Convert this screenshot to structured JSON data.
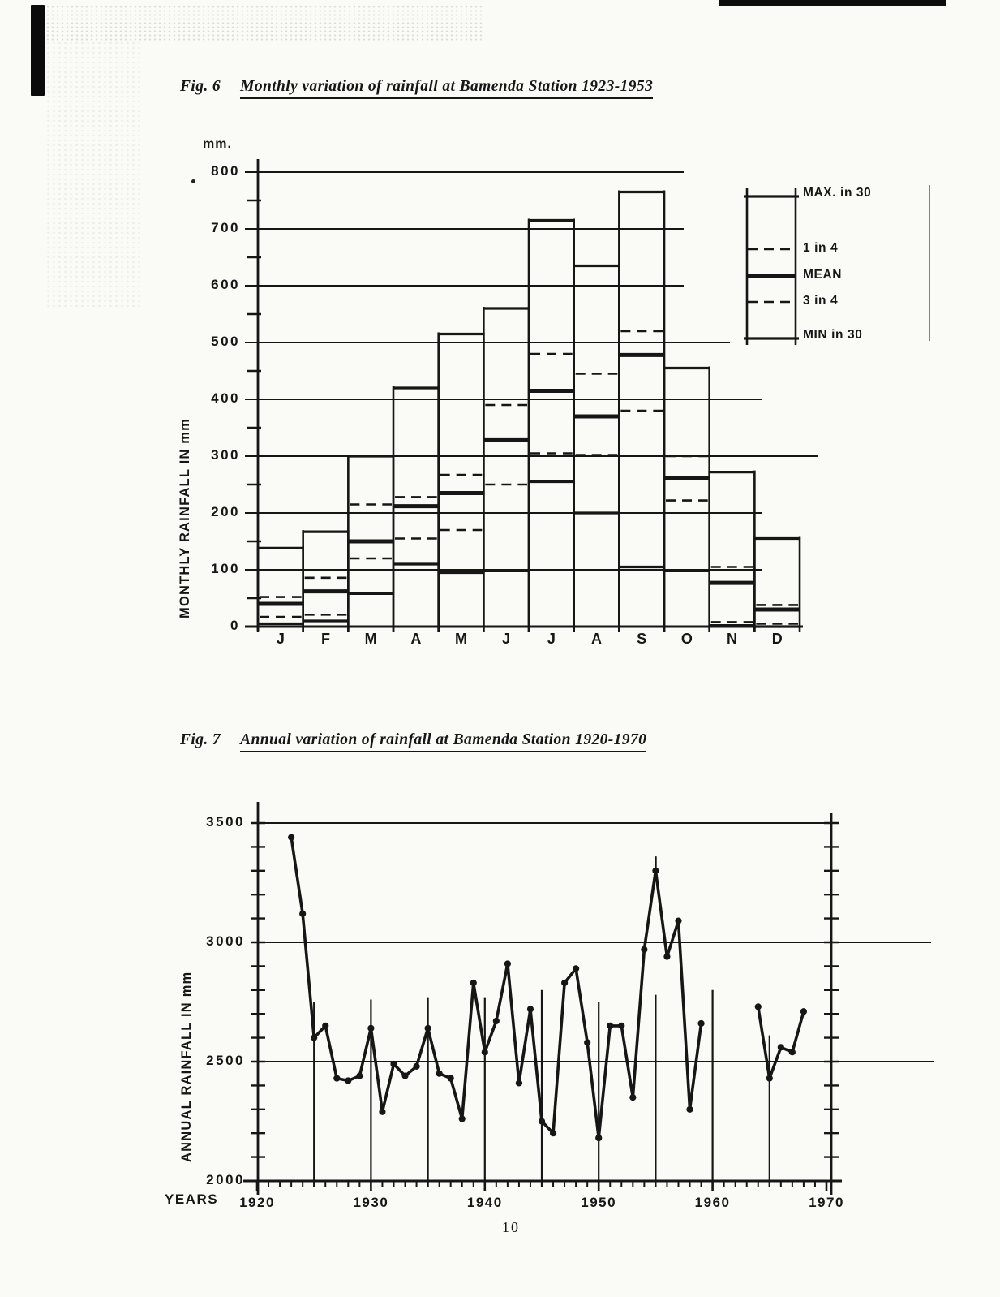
{
  "page": {
    "number": "10"
  },
  "fig6": {
    "label": "Fig. 6",
    "title": "Monthly variation of rainfall at Bamenda Station 1923-1953",
    "unit": "mm.",
    "y_axis_label": "MONTHLY RAINFALL IN mm",
    "y_ticks": [
      800,
      700,
      600,
      500,
      400,
      300,
      200,
      100,
      0
    ],
    "months": [
      "J",
      "F",
      "M",
      "A",
      "M",
      "J",
      "J",
      "A",
      "S",
      "O",
      "N",
      "D"
    ],
    "legend": [
      "MAX. in 30",
      "1 in  4",
      "MEAN",
      "3 in  4",
      "MIN in  30"
    ]
  },
  "fig7": {
    "label": "Fig. 7",
    "title": "Annual variation of rainfall at Bamenda Station 1920-1970",
    "y_axis_label": "ANNUAL RAINFALL IN mm",
    "x_axis_label": "YEARS",
    "y_ticks": [
      3500,
      3000,
      2500,
      2000
    ],
    "x_ticks": [
      1920,
      1930,
      1940,
      1950,
      1960,
      1970
    ]
  },
  "chart_data": [
    {
      "type": "bar",
      "subtype": "range-bars",
      "title": "Monthly variation of rainfall at Bamenda Station 1923-1953",
      "xlabel": "month",
      "ylabel": "MONTHLY RAINFALL IN mm",
      "ylim": [
        0,
        800
      ],
      "grid": true,
      "legend_position": "right",
      "categories": [
        "J",
        "F",
        "M",
        "A",
        "M",
        "J",
        "J",
        "A",
        "S",
        "O",
        "N",
        "D"
      ],
      "series": [
        {
          "name": "MAX. in 30",
          "style": "solid",
          "values": [
            138,
            167,
            300,
            420,
            515,
            560,
            715,
            635,
            765,
            455,
            272,
            155
          ]
        },
        {
          "name": "1 in 4",
          "style": "dashed",
          "values": [
            52,
            86,
            215,
            228,
            267,
            390,
            480,
            445,
            520,
            300,
            105,
            38
          ]
        },
        {
          "name": "MEAN",
          "style": "thick",
          "values": [
            40,
            62,
            150,
            212,
            235,
            328,
            415,
            370,
            478,
            262,
            77,
            30
          ]
        },
        {
          "name": "3 in 4",
          "style": "dashed",
          "values": [
            17,
            21,
            120,
            155,
            170,
            250,
            305,
            302,
            380,
            222,
            8,
            5
          ]
        },
        {
          "name": "MIN in 30",
          "style": "solid",
          "values": [
            5,
            10,
            58,
            110,
            95,
            98,
            255,
            200,
            105,
            98,
            2,
            0
          ]
        }
      ]
    },
    {
      "type": "line",
      "title": "Annual variation of rainfall at Bamenda Station 1920-1970",
      "xlabel": "YEARS",
      "ylabel": "ANNUAL RAINFALL IN mm",
      "xlim": [
        1920,
        1970.5
      ],
      "ylim": [
        2000,
        3500
      ],
      "markers": true,
      "segments": [
        {
          "years": [
            1923,
            1924,
            1925,
            1926,
            1927,
            1928,
            1929,
            1930,
            1931,
            1932,
            1933,
            1934,
            1935,
            1936,
            1937,
            1938,
            1939,
            1940,
            1941,
            1942,
            1943,
            1944,
            1945,
            1946,
            1947,
            1948,
            1949,
            1950,
            1951,
            1952,
            1953,
            1954,
            1955,
            1956,
            1957,
            1958,
            1959
          ],
          "values": [
            3440,
            3120,
            2600,
            2650,
            2430,
            2420,
            2440,
            2640,
            2290,
            2490,
            2440,
            2480,
            2640,
            2450,
            2430,
            2260,
            2830,
            2540,
            2670,
            2910,
            2410,
            2720,
            2250,
            2200,
            2830,
            2890,
            2580,
            2180,
            2650,
            2650,
            2350,
            2970,
            3300,
            2940,
            3090,
            2300,
            2660
          ]
        },
        {
          "years": [
            1964,
            1965,
            1966,
            1967,
            1968
          ],
          "values": [
            2730,
            2430,
            2560,
            2540,
            2710
          ]
        }
      ],
      "reference_lines": [
        {
          "year": 1925,
          "top": 2750
        },
        {
          "year": 1930,
          "top": 2760
        },
        {
          "year": 1935,
          "top": 2770
        },
        {
          "year": 1940,
          "top": 2770
        },
        {
          "year": 1945,
          "top": 2800
        },
        {
          "year": 1950,
          "top": 2750
        },
        {
          "year": 1955,
          "top": 2780
        },
        {
          "year": 1960,
          "top": 2800
        },
        {
          "year": 1965,
          "top": 2610
        }
      ]
    }
  ]
}
